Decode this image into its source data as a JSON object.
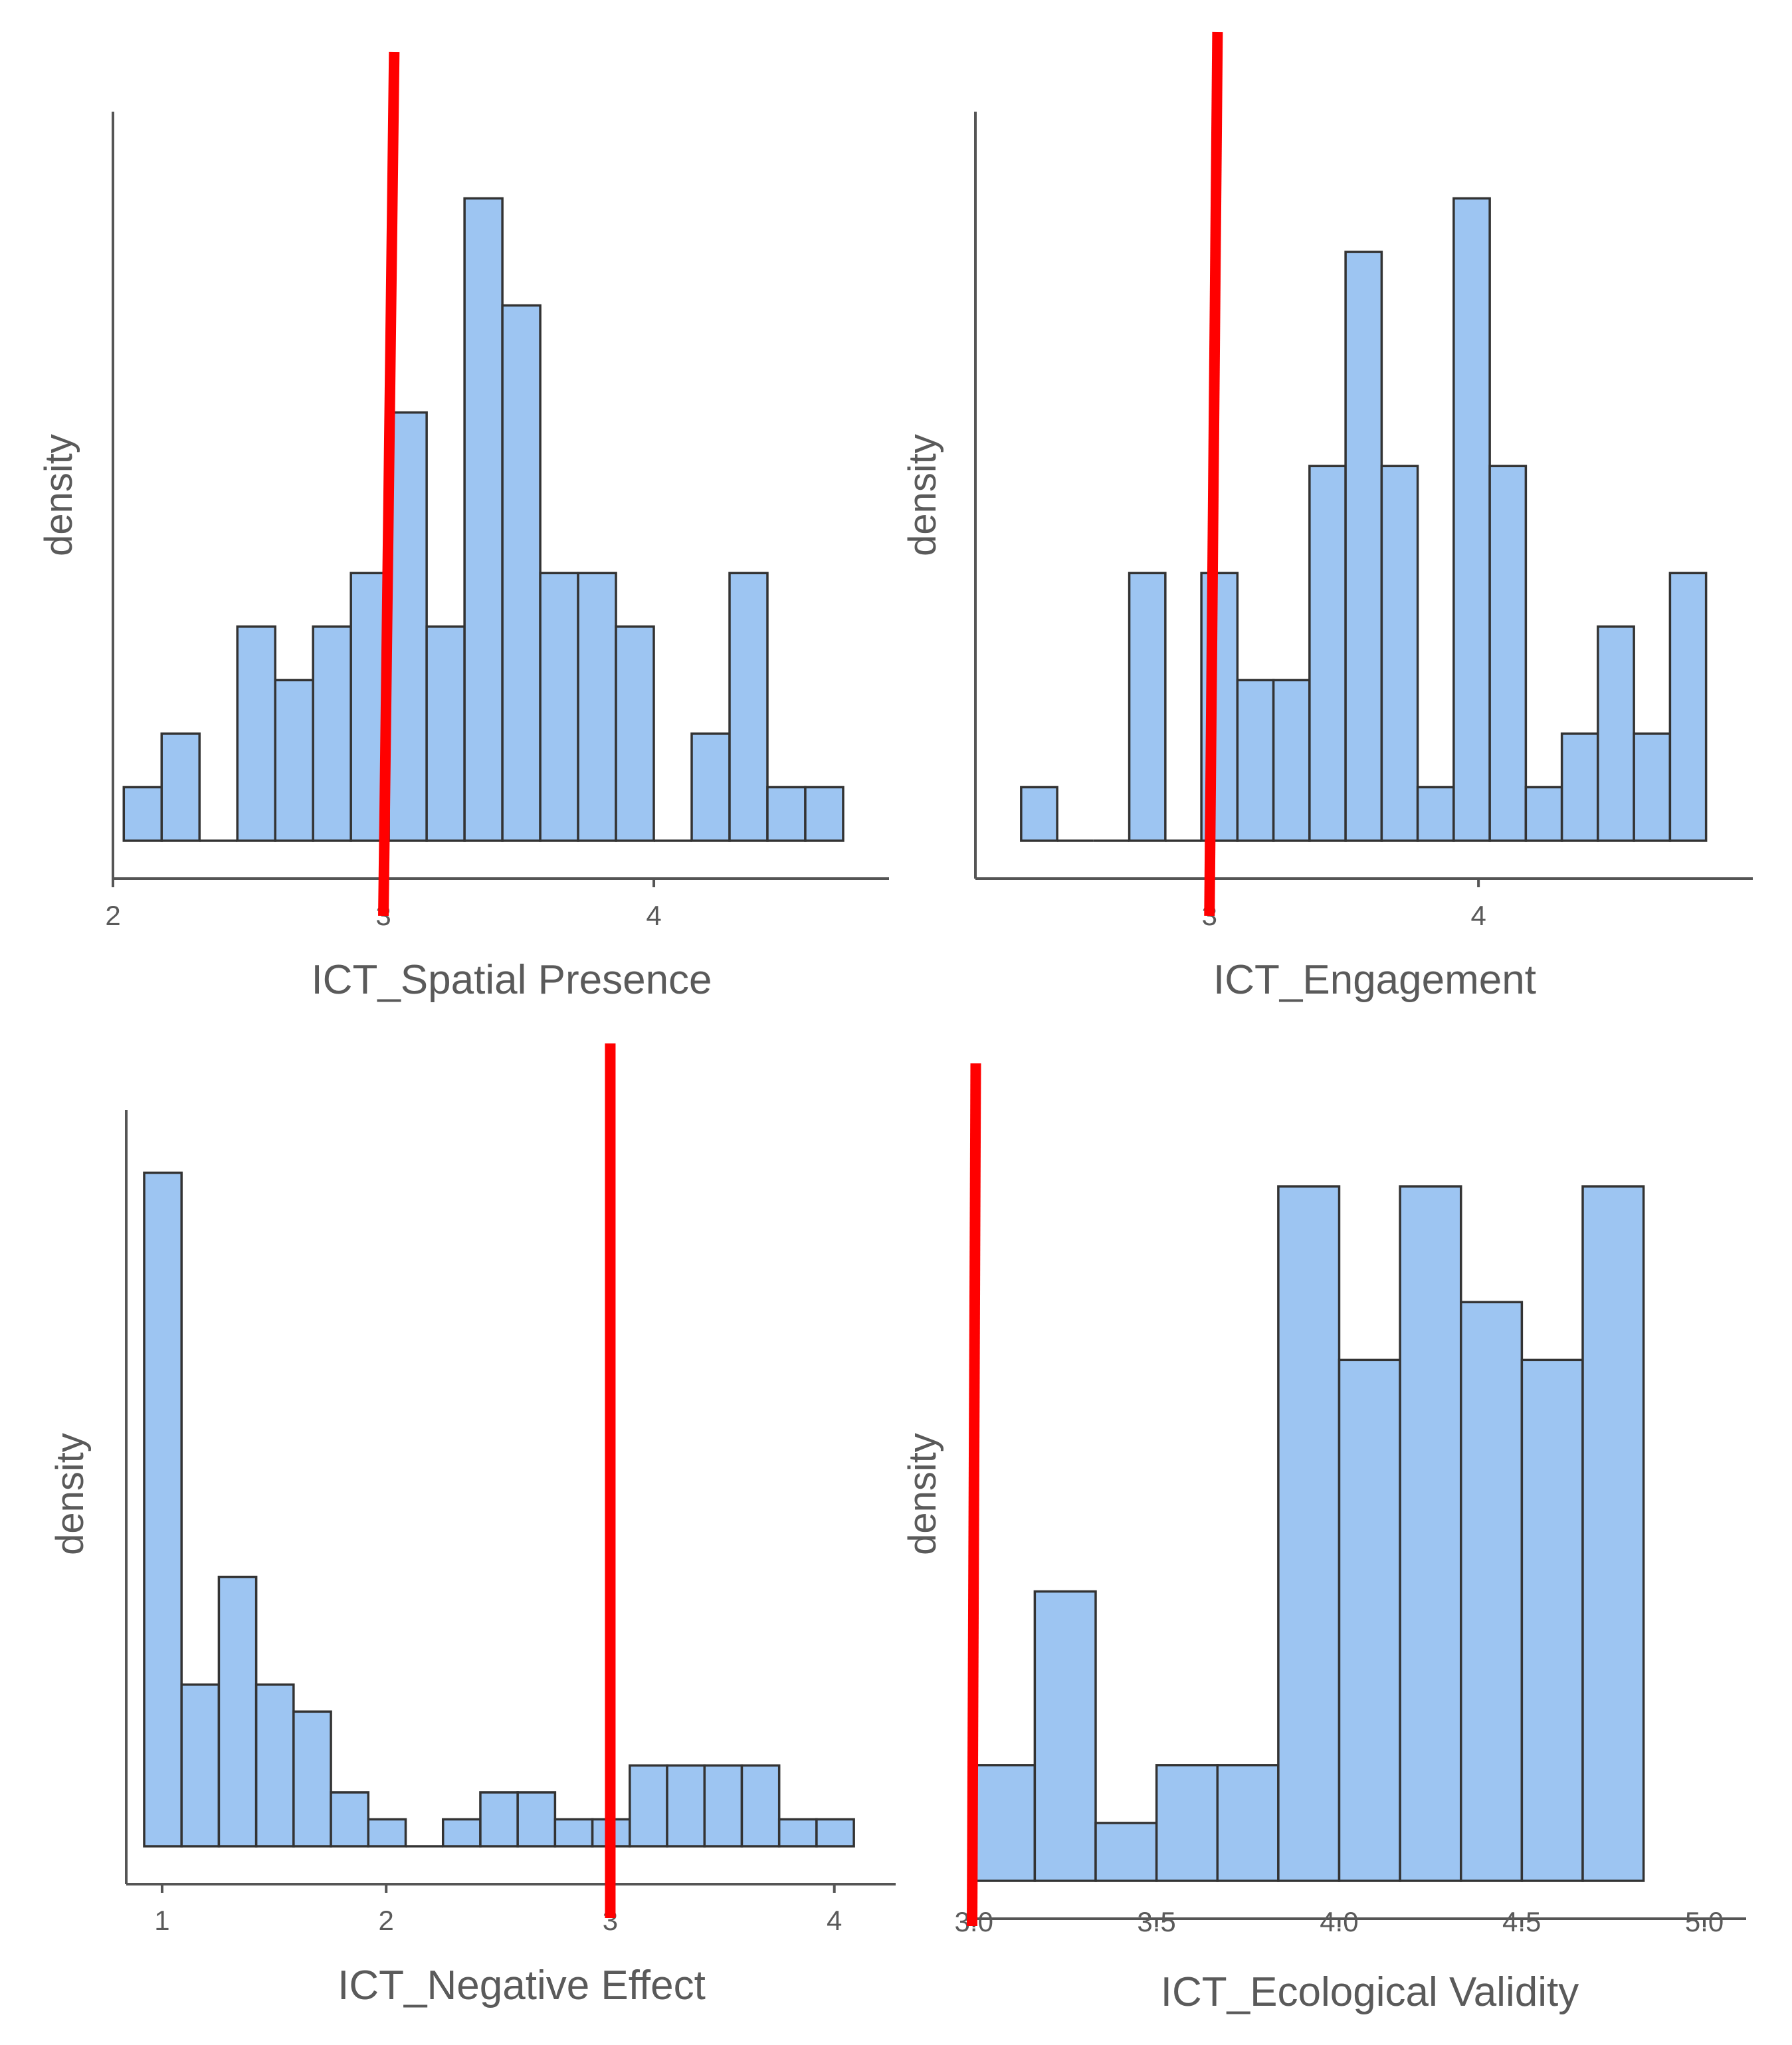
{
  "colors": {
    "bar_fill": "#9dc5f2",
    "bar_stroke": "#333333",
    "reference_line": "#ff0000",
    "axis": "#555555",
    "text": "#5a5a5a"
  },
  "chart_data": [
    {
      "type": "bar",
      "subtype": "histogram",
      "title": "",
      "xlabel": "ICT_Spatial Presence",
      "ylabel": "density",
      "xlim": [
        2.0,
        4.85
      ],
      "ylim": [
        0,
        13
      ],
      "xticks": [
        2,
        3,
        4
      ],
      "tick_labels": [
        "2",
        "3",
        "4"
      ],
      "bins": {
        "start": 2.04,
        "width": 0.14
      },
      "values": [
        1,
        2,
        0,
        4,
        3,
        4,
        5,
        8,
        4,
        12,
        10,
        5,
        5,
        4,
        0,
        2,
        5,
        1,
        1
      ],
      "reference_line": {
        "x": 3.0,
        "x_top": 3.04
      }
    },
    {
      "type": "bar",
      "subtype": "histogram",
      "title": "",
      "xlabel": "ICT_Engagement",
      "ylabel": "density",
      "xlim": [
        2.13,
        5.0
      ],
      "ylim": [
        0,
        13
      ],
      "xticks": [
        3,
        4
      ],
      "tick_labels": [
        "3",
        "4"
      ],
      "bins": {
        "start": 2.3,
        "width": 0.134
      },
      "values": [
        1,
        0,
        0,
        5,
        0,
        5,
        3,
        3,
        7,
        11,
        7,
        1,
        12,
        7,
        1,
        2,
        4,
        2,
        5
      ],
      "reference_line": {
        "x": 3.0,
        "x_top": 3.03
      }
    },
    {
      "type": "bar",
      "subtype": "histogram",
      "title": "",
      "xlabel": "ICT_Negative Effect",
      "ylabel": "density",
      "xlim": [
        0.84,
        4.25
      ],
      "ylim": [
        0,
        26
      ],
      "xticks": [
        1,
        2,
        3,
        4
      ],
      "tick_labels": [
        "1",
        "2",
        "3",
        "4"
      ],
      "bins": {
        "start": 0.92,
        "width": 0.1667
      },
      "values": [
        25,
        6,
        10,
        6,
        5,
        2,
        1,
        0,
        1,
        2,
        2,
        1,
        1,
        3,
        3,
        3,
        3,
        1,
        1
      ],
      "reference_line": {
        "x": 3.0,
        "x_top": 3.0
      }
    },
    {
      "type": "bar",
      "subtype": "histogram",
      "title": "",
      "xlabel": "ICT_Ecological Validity",
      "ylabel": "density",
      "xlim": [
        2.995,
        5.1
      ],
      "ylim": [
        0,
        13
      ],
      "xticks": [
        3.0,
        3.5,
        4.0,
        4.5,
        5.0
      ],
      "tick_labels": [
        "3.0",
        "3.5",
        "4.0",
        "4.5",
        "5.0"
      ],
      "bins": {
        "start": 3.0,
        "width": 0.1667
      },
      "values": [
        2,
        5,
        1,
        2,
        2,
        12,
        9,
        12,
        10,
        9,
        12
      ],
      "reference_line": {
        "x": 2.995,
        "x_top": 3.005
      }
    }
  ]
}
